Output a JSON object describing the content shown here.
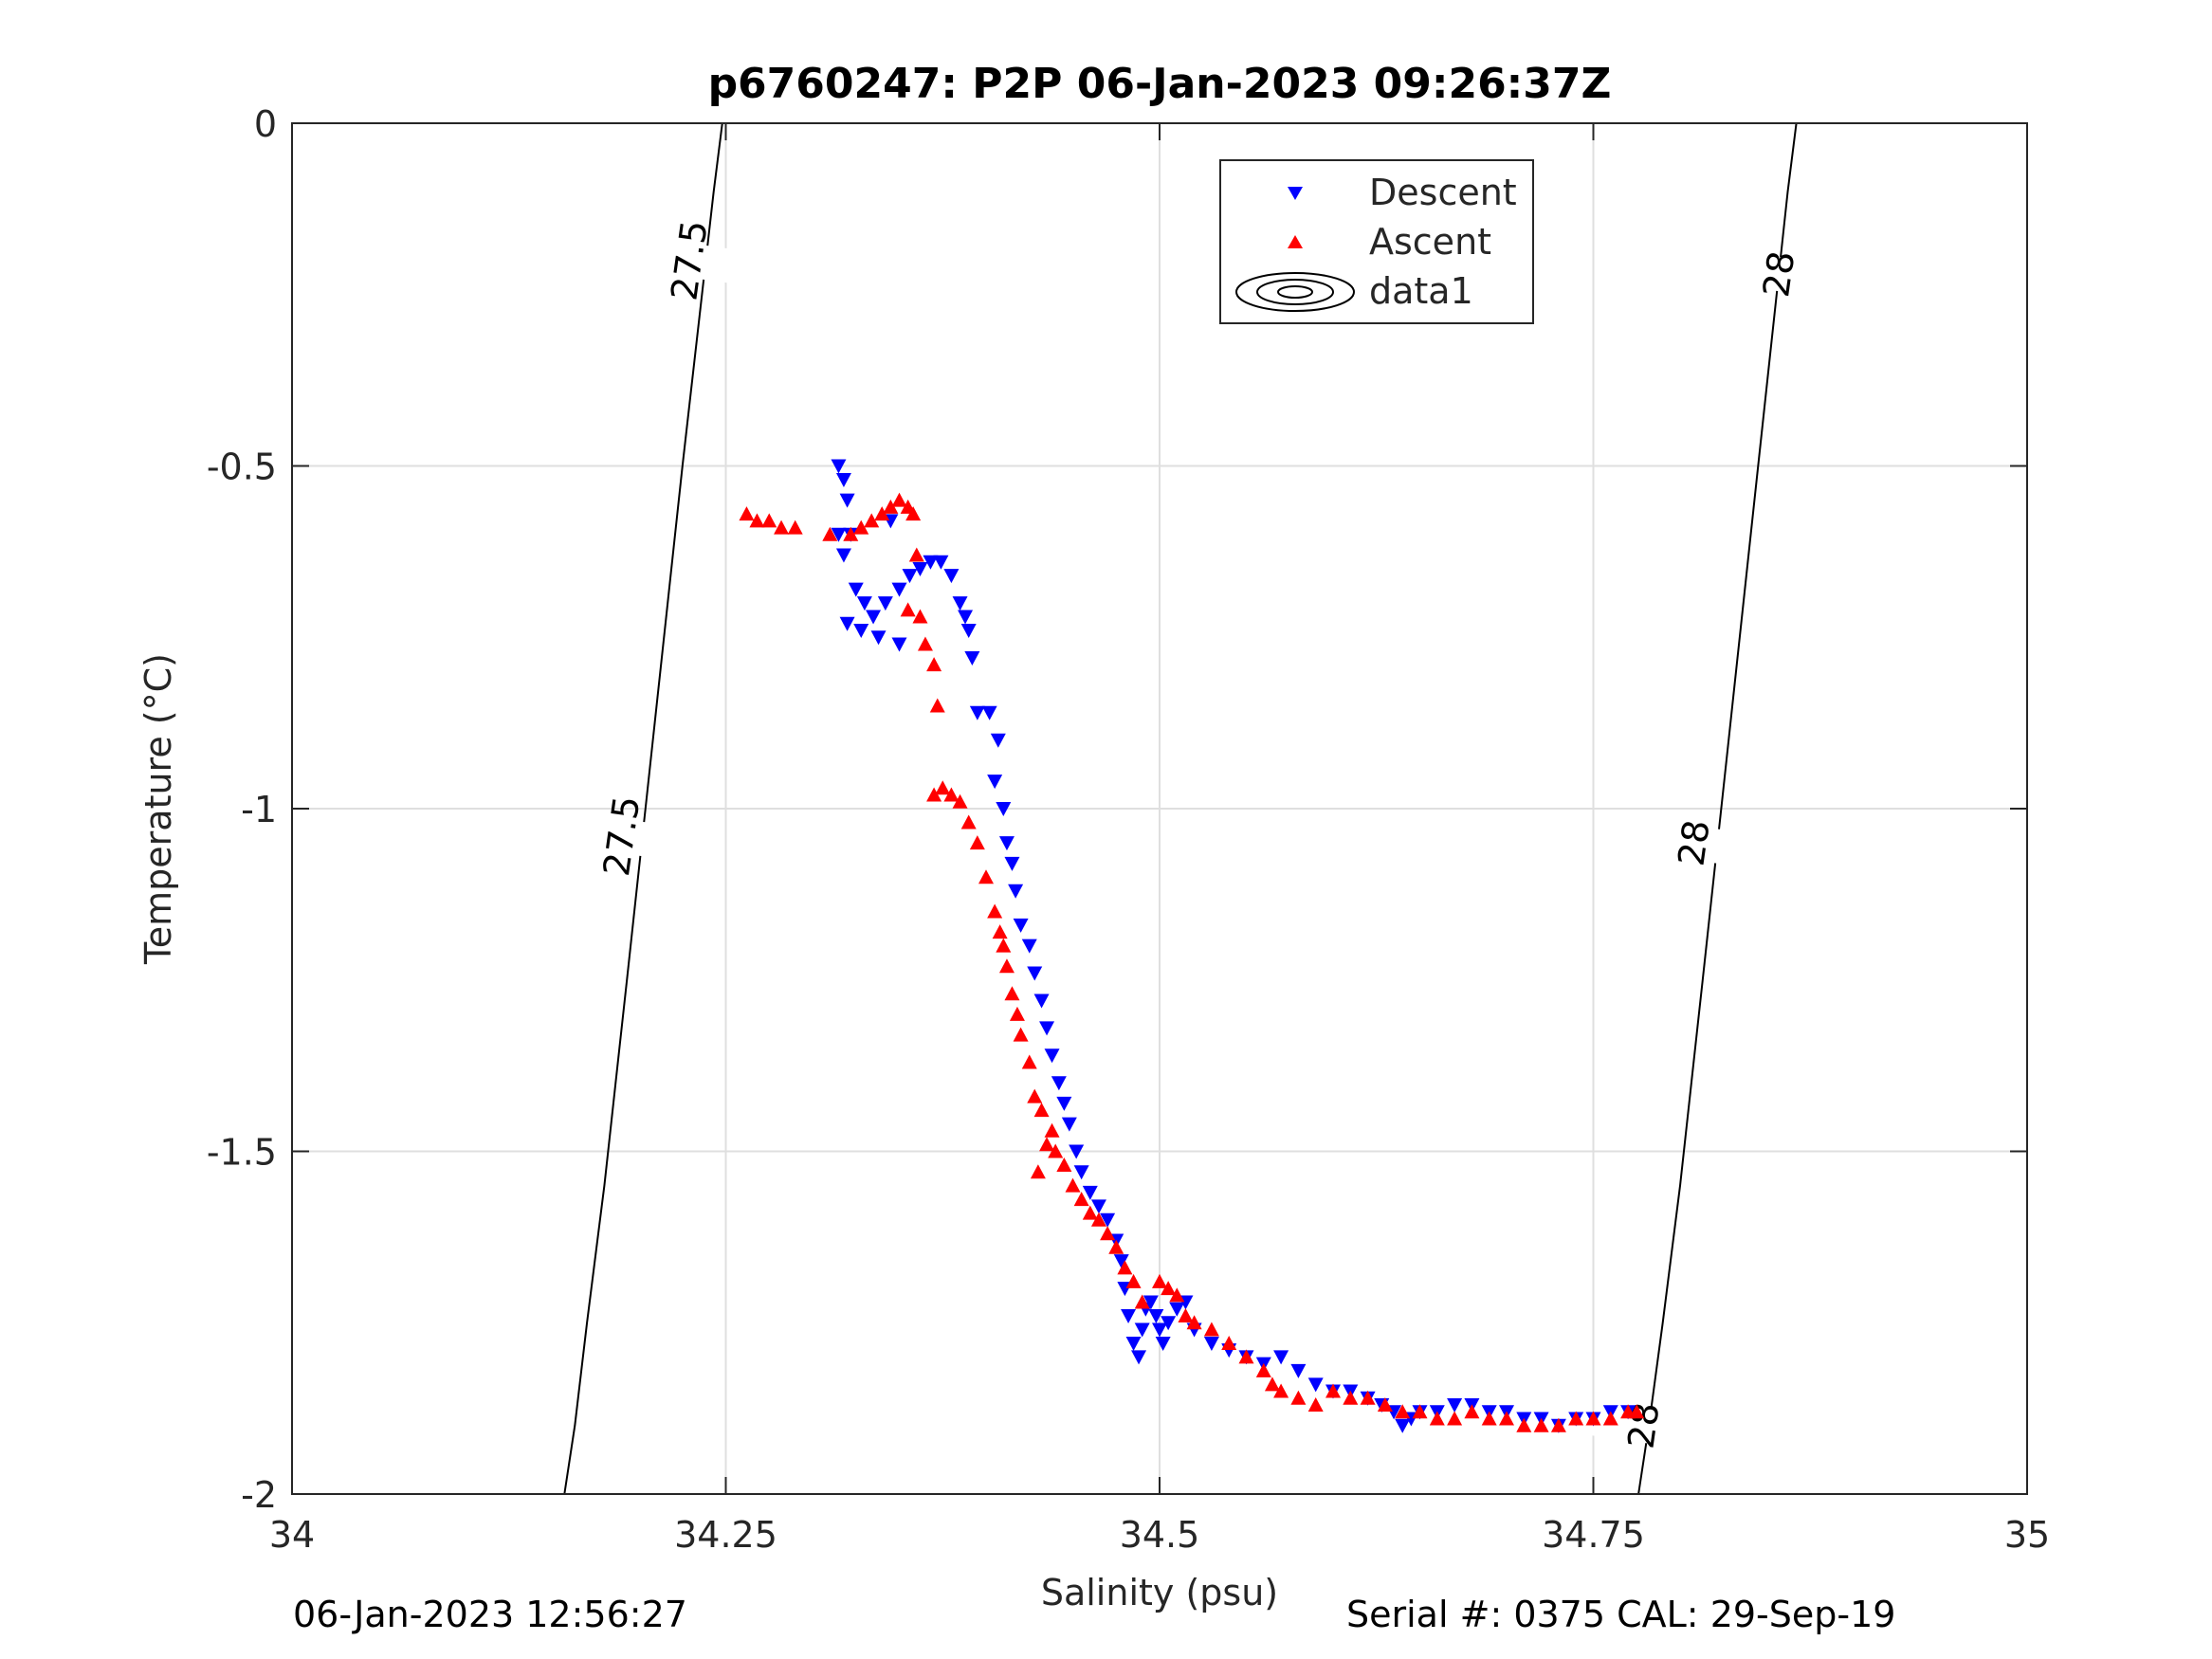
{
  "chart_data": {
    "type": "scatter",
    "title": "p6760247: P2P 06-Jan-2023 09:26:37Z",
    "xlabel": "Salinity (psu)",
    "ylabel": "Temperature (°C)",
    "xlim": [
      34,
      35
    ],
    "ylim": [
      -2,
      0
    ],
    "xticks": [
      34,
      34.25,
      34.5,
      34.75,
      35
    ],
    "xtick_labels": [
      "34",
      "34.25",
      "34.5",
      "34.75",
      "35"
    ],
    "yticks": [
      -2,
      -1.5,
      -1,
      -0.5,
      0
    ],
    "ytick_labels": [
      "-2",
      "-1.5",
      "-1",
      "-0.5",
      "0"
    ],
    "grid": true,
    "legend_position": "top-right",
    "legend": [
      {
        "name": "Descent",
        "marker": "triangle-down",
        "color": "#0000ff"
      },
      {
        "name": "Ascent",
        "marker": "triangle-up",
        "color": "#ff0000"
      },
      {
        "name": "data1",
        "marker": "contour-ellipses",
        "color": "#000000"
      }
    ],
    "series": [
      {
        "name": "Descent",
        "color": "#0000ff",
        "marker": "triangle-down",
        "x": [
          34.315,
          34.318,
          34.32,
          34.322,
          34.318,
          34.325,
          34.33,
          34.32,
          34.335,
          34.342,
          34.35,
          34.356,
          34.362,
          34.368,
          34.374,
          34.38,
          34.385,
          34.39,
          34.392,
          34.388,
          34.345,
          34.315,
          34.328,
          34.338,
          34.35,
          34.395,
          34.402,
          34.407,
          34.405,
          34.41,
          34.412,
          34.415,
          34.417,
          34.42,
          34.425,
          34.428,
          34.432,
          34.435,
          34.438,
          34.442,
          34.445,
          34.448,
          34.452,
          34.455,
          34.46,
          34.465,
          34.47,
          34.475,
          34.478,
          34.48,
          34.482,
          34.485,
          34.488,
          34.49,
          34.492,
          34.495,
          34.498,
          34.5,
          34.502,
          34.505,
          34.51,
          34.515,
          34.52,
          34.53,
          34.54,
          34.55,
          34.56,
          34.57,
          34.58,
          34.59,
          34.6,
          34.61,
          34.62,
          34.628,
          34.635,
          34.64,
          34.645,
          34.65,
          34.66,
          34.67,
          34.68,
          34.69,
          34.7,
          34.71,
          34.72,
          34.73,
          34.74,
          34.75,
          34.76,
          34.77
        ],
        "y": [
          -0.5,
          -0.52,
          -0.55,
          -0.6,
          -0.63,
          -0.68,
          -0.7,
          -0.73,
          -0.72,
          -0.7,
          -0.68,
          -0.66,
          -0.65,
          -0.64,
          -0.64,
          -0.66,
          -0.7,
          -0.74,
          -0.78,
          -0.72,
          -0.58,
          -0.6,
          -0.74,
          -0.75,
          -0.76,
          -0.86,
          -0.86,
          -0.9,
          -0.96,
          -1.0,
          -1.05,
          -1.08,
          -1.12,
          -1.17,
          -1.2,
          -1.24,
          -1.28,
          -1.32,
          -1.36,
          -1.4,
          -1.43,
          -1.46,
          -1.5,
          -1.53,
          -1.56,
          -1.58,
          -1.6,
          -1.63,
          -1.66,
          -1.7,
          -1.74,
          -1.78,
          -1.8,
          -1.76,
          -1.73,
          -1.72,
          -1.74,
          -1.76,
          -1.78,
          -1.75,
          -1.73,
          -1.72,
          -1.76,
          -1.78,
          -1.79,
          -1.8,
          -1.81,
          -1.8,
          -1.82,
          -1.84,
          -1.85,
          -1.85,
          -1.86,
          -1.87,
          -1.88,
          -1.9,
          -1.89,
          -1.88,
          -1.88,
          -1.87,
          -1.87,
          -1.88,
          -1.88,
          -1.89,
          -1.89,
          -1.9,
          -1.89,
          -1.89,
          -1.88,
          -1.88
        ]
      },
      {
        "name": "Ascent",
        "color": "#ff0000",
        "marker": "triangle-up",
        "x": [
          34.262,
          34.268,
          34.275,
          34.282,
          34.29,
          34.31,
          34.322,
          34.328,
          34.334,
          34.34,
          34.345,
          34.35,
          34.355,
          34.358,
          34.36,
          34.355,
          34.362,
          34.365,
          34.37,
          34.372,
          34.37,
          34.375,
          34.38,
          34.385,
          34.39,
          34.395,
          34.4,
          34.405,
          34.408,
          34.41,
          34.412,
          34.415,
          34.418,
          34.42,
          34.425,
          34.428,
          34.432,
          34.43,
          34.435,
          34.438,
          34.44,
          34.445,
          34.45,
          34.455,
          34.46,
          34.465,
          34.47,
          34.475,
          34.48,
          34.485,
          34.49,
          34.5,
          34.505,
          34.51,
          34.515,
          34.52,
          34.53,
          34.54,
          34.55,
          34.56,
          34.565,
          34.57,
          34.58,
          34.59,
          34.6,
          34.61,
          34.62,
          34.63,
          34.64,
          34.65,
          34.66,
          34.67,
          34.68,
          34.69,
          34.7,
          34.71,
          34.72,
          34.73,
          34.74,
          34.75,
          34.76,
          34.77,
          34.775
        ],
        "y": [
          -0.57,
          -0.58,
          -0.58,
          -0.59,
          -0.59,
          -0.6,
          -0.6,
          -0.59,
          -0.58,
          -0.57,
          -0.56,
          -0.55,
          -0.56,
          -0.57,
          -0.63,
          -0.71,
          -0.72,
          -0.76,
          -0.79,
          -0.85,
          -0.98,
          -0.97,
          -0.98,
          -0.99,
          -1.02,
          -1.05,
          -1.1,
          -1.15,
          -1.18,
          -1.2,
          -1.23,
          -1.27,
          -1.3,
          -1.33,
          -1.37,
          -1.42,
          -1.44,
          -1.53,
          -1.49,
          -1.47,
          -1.5,
          -1.52,
          -1.55,
          -1.57,
          -1.59,
          -1.6,
          -1.62,
          -1.64,
          -1.67,
          -1.69,
          -1.72,
          -1.69,
          -1.7,
          -1.71,
          -1.74,
          -1.75,
          -1.76,
          -1.78,
          -1.8,
          -1.82,
          -1.84,
          -1.85,
          -1.86,
          -1.87,
          -1.85,
          -1.86,
          -1.86,
          -1.87,
          -1.88,
          -1.88,
          -1.89,
          -1.89,
          -1.88,
          -1.89,
          -1.89,
          -1.9,
          -1.9,
          -1.9,
          -1.89,
          -1.89,
          -1.89,
          -1.88,
          -1.88
        ]
      }
    ],
    "contours": [
      {
        "level_label": "27.5",
        "line": [
          [
            34.157,
            -2.0
          ],
          [
            34.163,
            -1.9
          ],
          [
            34.17,
            -1.75
          ],
          [
            34.18,
            -1.55
          ],
          [
            34.193,
            -1.25
          ],
          [
            34.208,
            -0.9
          ],
          [
            34.225,
            -0.5
          ],
          [
            34.243,
            -0.1
          ],
          [
            34.248,
            0.0
          ]
        ],
        "labels": [
          {
            "x": 34.229,
            "y": -0.2
          },
          {
            "x": 34.19,
            "y": -1.04
          }
        ]
      },
      {
        "level_label": "28",
        "line": [
          [
            34.776,
            -2.0
          ],
          [
            34.782,
            -1.9
          ],
          [
            34.79,
            -1.75
          ],
          [
            34.8,
            -1.55
          ],
          [
            34.813,
            -1.25
          ],
          [
            34.828,
            -0.9
          ],
          [
            34.845,
            -0.5
          ],
          [
            34.862,
            -0.1
          ],
          [
            34.867,
            0.0
          ]
        ],
        "labels": [
          {
            "x": 34.857,
            "y": -0.22
          },
          {
            "x": 34.808,
            "y": -1.05
          },
          {
            "x": 34.779,
            "y": -1.9
          }
        ]
      }
    ]
  },
  "footer": {
    "timestamp": "06-Jan-2023 12:56:27",
    "serial": "Serial #: 0375  CAL: 29-Sep-19"
  }
}
